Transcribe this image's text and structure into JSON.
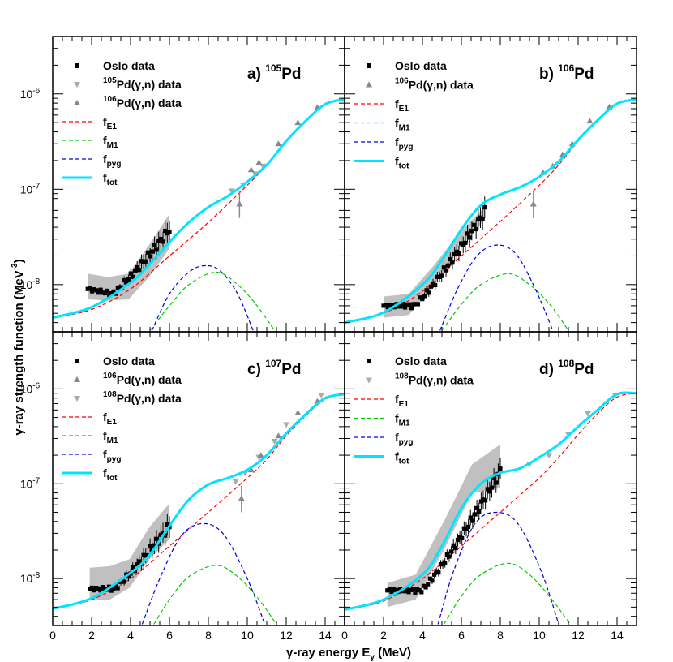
{
  "figure": {
    "ylabel_prefix": "γ-ray strength function (MeV",
    "ylabel_exp": "-3",
    "ylabel_suffix": ")",
    "xlabel": "γ-ray energy E",
    "xlabel_sub": "γ",
    "xlabel_suffix": " (MeV)"
  },
  "chart_data": [
    {
      "type": "scatter",
      "panel": "a)",
      "nucleus_mass": "105",
      "nucleus_symbol": "Pd",
      "xlim": [
        0,
        15
      ],
      "ylim": [
        3.2e-09,
        4e-06
      ],
      "yscale": "log",
      "x_ticks": [
        "0",
        "2",
        "4",
        "6",
        "8",
        "10",
        "12",
        "14"
      ],
      "y_ticks": [
        {
          "value": 1e-08,
          "base": "10",
          "exp": "-8"
        },
        {
          "value": 1e-07,
          "base": "10",
          "exp": "-7"
        },
        {
          "value": 1e-06,
          "base": "10",
          "exp": "-6"
        }
      ],
      "legend": [
        {
          "label": "Oslo data"
        },
        {
          "mass": "105",
          "label": "Pd(γ,n) data"
        },
        {
          "mass": "106",
          "label": "Pd(γ,n) data"
        },
        {
          "label": "f",
          "sub": "E1"
        },
        {
          "label": "f",
          "sub": "M1"
        },
        {
          "label": "f",
          "sub": "pyg"
        },
        {
          "label": "f",
          "sub": "tot"
        }
      ],
      "oslo": {
        "x_range": [
          1.8,
          6.0
        ],
        "y_start": 9e-09,
        "y_min": 8e-09,
        "y_end": 3.8e-08,
        "band_upper": [
          1.3e-08,
          1.2e-08,
          1.3e-08,
          2.6e-08,
          5.5e-08
        ],
        "band_lower": [
          7e-09,
          6.8e-09,
          7e-09,
          1.2e-08,
          2.4e-08
        ]
      },
      "gn_down": [
        {
          "x": 9.2,
          "y": 9.6e-08
        },
        {
          "x": 9.8,
          "y": 1.1e-07
        },
        {
          "x": 10.4,
          "y": 1.45e-07
        },
        {
          "x": 10.8,
          "y": 1.75e-07
        }
      ],
      "gn_up": [
        {
          "x": 9.6,
          "y": 7e-08,
          "err": [
            5e-08,
            9.5e-08
          ]
        },
        {
          "x": 10.2,
          "y": 1.6e-07
        },
        {
          "x": 10.6,
          "y": 1.9e-07
        },
        {
          "x": 11.6,
          "y": 3e-07
        },
        {
          "x": 12.6,
          "y": 5e-07
        },
        {
          "x": 13.6,
          "y": 7.2e-07
        }
      ],
      "models": {
        "e1": [
          [
            0,
            4.5e-09
          ],
          [
            2,
            5.5e-09
          ],
          [
            4,
            9e-09
          ],
          [
            6,
            2e-08
          ],
          [
            8,
            4.5e-08
          ],
          [
            10,
            1.1e-07
          ],
          [
            11,
            1.8e-07
          ],
          [
            12,
            3.2e-07
          ],
          [
            13,
            5.2e-07
          ],
          [
            14,
            7.8e-07
          ],
          [
            15,
            8.8e-07
          ]
        ],
        "m1": [
          [
            5,
            3.3e-09
          ],
          [
            6,
            6e-09
          ],
          [
            7,
            1e-08
          ],
          [
            8.4,
            1.35e-08
          ],
          [
            9.5,
            1e-08
          ],
          [
            10.5,
            6e-09
          ],
          [
            11.4,
            3.3e-09
          ]
        ],
        "pyg": [
          [
            5.1,
            3.3e-09
          ],
          [
            6,
            8e-09
          ],
          [
            7,
            1.35e-08
          ],
          [
            7.8,
            1.58e-08
          ],
          [
            8.6,
            1.4e-08
          ],
          [
            9.5,
            8e-09
          ],
          [
            10.3,
            3.3e-09
          ]
        ],
        "tot": [
          [
            0,
            4.5e-09
          ],
          [
            2,
            5.8e-09
          ],
          [
            4,
            1.05e-08
          ],
          [
            5,
            1.65e-08
          ],
          [
            6,
            2.8e-08
          ],
          [
            7,
            4.5e-08
          ],
          [
            8,
            6.5e-08
          ],
          [
            9,
            8.5e-08
          ],
          [
            10,
            1.2e-07
          ],
          [
            11,
            1.8e-07
          ],
          [
            12,
            3.2e-07
          ],
          [
            13,
            5.2e-07
          ],
          [
            14,
            7.8e-07
          ],
          [
            15,
            8.8e-07
          ]
        ]
      }
    },
    {
      "type": "scatter",
      "panel": "b)",
      "nucleus_mass": "106",
      "nucleus_symbol": "Pd",
      "xlim": [
        0,
        15
      ],
      "ylim": [
        3.2e-09,
        4e-06
      ],
      "yscale": "log",
      "x_ticks": [
        "0",
        "2",
        "4",
        "6",
        "8",
        "10",
        "12",
        "14"
      ],
      "y_ticks": [
        {
          "value": 1e-08,
          "base": "10",
          "exp": "-8"
        },
        {
          "value": 1e-07,
          "base": "10",
          "exp": "-7"
        },
        {
          "value": 1e-06,
          "base": "10",
          "exp": "-6"
        }
      ],
      "legend": [
        {
          "label": "Oslo data"
        },
        {
          "mass": "106",
          "label": "Pd(γ,n) data"
        },
        {
          "label": "f",
          "sub": "E1"
        },
        {
          "label": "f",
          "sub": "M1"
        },
        {
          "label": "f",
          "sub": "pyg"
        },
        {
          "label": "f",
          "sub": "tot"
        }
      ],
      "oslo": {
        "x_range": [
          2.0,
          7.2
        ],
        "y_start": 6e-09,
        "y_min": 6e-09,
        "y_end": 5.8e-08,
        "band_upper": [
          7.5e-09,
          8e-09,
          1.6e-08,
          3.5e-08,
          6.5e-08
        ],
        "band_lower": [
          4.5e-09,
          4.8e-09,
          1e-08,
          2.4e-08,
          4.8e-08
        ]
      },
      "gn_down": [],
      "gn_up": [
        {
          "x": 9.7,
          "y": 7e-08,
          "err": [
            5e-08,
            9.5e-08
          ]
        },
        {
          "x": 10.2,
          "y": 1.5e-07
        },
        {
          "x": 10.7,
          "y": 1.75e-07
        },
        {
          "x": 11.2,
          "y": 2.3e-07
        },
        {
          "x": 11.7,
          "y": 3e-07
        },
        {
          "x": 12.6,
          "y": 5.2e-07
        },
        {
          "x": 13.6,
          "y": 7.3e-07
        }
      ],
      "models": {
        "e1": [
          [
            0,
            4e-09
          ],
          [
            2,
            5e-09
          ],
          [
            4,
            8.5e-09
          ],
          [
            6,
            2e-08
          ],
          [
            8,
            4.6e-08
          ],
          [
            10,
            1.1e-07
          ],
          [
            11,
            1.8e-07
          ],
          [
            12,
            3.2e-07
          ],
          [
            13,
            5.2e-07
          ],
          [
            14,
            7.8e-07
          ],
          [
            15,
            8.8e-07
          ]
        ],
        "m1": [
          [
            5,
            3.3e-09
          ],
          [
            6,
            6.2e-09
          ],
          [
            7,
            1e-08
          ],
          [
            8.4,
            1.3e-08
          ],
          [
            9.5,
            1e-08
          ],
          [
            10.6,
            6e-09
          ],
          [
            11.5,
            3.3e-09
          ]
        ],
        "pyg": [
          [
            4.9,
            3.3e-09
          ],
          [
            5.8,
            9e-09
          ],
          [
            6.8,
            2e-08
          ],
          [
            7.8,
            2.6e-08
          ],
          [
            8.8,
            2.1e-08
          ],
          [
            9.8,
            9e-09
          ],
          [
            10.7,
            3.3e-09
          ]
        ],
        "tot": [
          [
            0,
            4e-09
          ],
          [
            2,
            5.1e-09
          ],
          [
            4,
            1e-08
          ],
          [
            5,
            1.8e-08
          ],
          [
            6,
            3.8e-08
          ],
          [
            7,
            6.8e-08
          ],
          [
            8,
            8.8e-08
          ],
          [
            9,
            1.05e-07
          ],
          [
            10,
            1.35e-07
          ],
          [
            11,
            1.95e-07
          ],
          [
            12,
            3.3e-07
          ],
          [
            13,
            5.3e-07
          ],
          [
            14,
            7.9e-07
          ],
          [
            15,
            8.8e-07
          ]
        ]
      }
    },
    {
      "type": "scatter",
      "panel": "c)",
      "nucleus_mass": "107",
      "nucleus_symbol": "Pd",
      "xlim": [
        0,
        15
      ],
      "ylim": [
        3.2e-09,
        4e-06
      ],
      "yscale": "log",
      "x_ticks": [
        "0",
        "2",
        "4",
        "6",
        "8",
        "10",
        "12",
        "14"
      ],
      "y_ticks": [
        {
          "value": 1e-08,
          "base": "10",
          "exp": "-8"
        },
        {
          "value": 1e-07,
          "base": "10",
          "exp": "-7"
        },
        {
          "value": 1e-06,
          "base": "10",
          "exp": "-6"
        }
      ],
      "legend": [
        {
          "label": "Oslo data"
        },
        {
          "mass": "106",
          "label": "Pd(γ,n) data"
        },
        {
          "mass": "108",
          "label": "Pd(γ,n) data"
        },
        {
          "label": "f",
          "sub": "E1"
        },
        {
          "label": "f",
          "sub": "M1"
        },
        {
          "label": "f",
          "sub": "pyg"
        },
        {
          "label": "f",
          "sub": "tot"
        }
      ],
      "oslo": {
        "x_range": [
          1.9,
          6.0
        ],
        "y_start": 7.8e-09,
        "y_min": 7.8e-09,
        "y_end": 3.6e-08,
        "band_upper": [
          1.3e-08,
          1.35e-08,
          1.6e-08,
          3.5e-08,
          6.2e-08
        ],
        "band_lower": [
          6e-09,
          6e-09,
          8e-09,
          1.6e-08,
          2.6e-08
        ]
      },
      "gn_down": [
        {
          "x": 9.4,
          "y": 1.05e-07
        },
        {
          "x": 9.9,
          "y": 1.3e-07
        },
        {
          "x": 10.6,
          "y": 1.9e-07
        },
        {
          "x": 11.4,
          "y": 2.8e-07
        },
        {
          "x": 12.0,
          "y": 4.2e-07
        },
        {
          "x": 13.8,
          "y": 8.6e-07
        }
      ],
      "gn_up": [
        {
          "x": 9.7,
          "y": 7e-08,
          "err": [
            5e-08,
            9.5e-08
          ]
        },
        {
          "x": 10.2,
          "y": 1.4e-07
        },
        {
          "x": 10.7,
          "y": 2e-07
        },
        {
          "x": 11.6,
          "y": 3.2e-07
        },
        {
          "x": 12.6,
          "y": 5.6e-07
        },
        {
          "x": 13.6,
          "y": 7.4e-07
        }
      ],
      "models": {
        "e1": [
          [
            0,
            4.8e-09
          ],
          [
            2,
            6e-09
          ],
          [
            4,
            1e-08
          ],
          [
            6,
            2.2e-08
          ],
          [
            8,
            5e-08
          ],
          [
            10,
            1.15e-07
          ],
          [
            11,
            1.8e-07
          ],
          [
            12,
            3.2e-07
          ],
          [
            13,
            5.2e-07
          ],
          [
            14,
            7.8e-07
          ],
          [
            15,
            8.8e-07
          ]
        ],
        "m1": [
          [
            5.2,
            3.3e-09
          ],
          [
            6,
            6e-09
          ],
          [
            7,
            1.05e-08
          ],
          [
            8.4,
            1.38e-08
          ],
          [
            9.5,
            1.05e-08
          ],
          [
            10.6,
            6e-09
          ],
          [
            11.5,
            3.3e-09
          ]
        ],
        "pyg": [
          [
            4.6,
            3.3e-09
          ],
          [
            5.5,
            1e-08
          ],
          [
            6.6,
            2.8e-08
          ],
          [
            7.7,
            3.8e-08
          ],
          [
            8.8,
            2.9e-08
          ],
          [
            10,
            1e-08
          ],
          [
            10.9,
            3.3e-09
          ]
        ],
        "tot": [
          [
            0,
            4.8e-09
          ],
          [
            2,
            6.2e-09
          ],
          [
            4,
            1.15e-08
          ],
          [
            5,
            1.8e-08
          ],
          [
            6,
            3.6e-08
          ],
          [
            7,
            6.8e-08
          ],
          [
            8,
            9.8e-08
          ],
          [
            9,
            1.15e-07
          ],
          [
            10,
            1.4e-07
          ],
          [
            11,
            2e-07
          ],
          [
            12,
            3.4e-07
          ],
          [
            13,
            5.4e-07
          ],
          [
            14,
            8e-07
          ],
          [
            15,
            8.8e-07
          ]
        ]
      }
    },
    {
      "type": "scatter",
      "panel": "d)",
      "nucleus_mass": "108",
      "nucleus_symbol": "Pd",
      "xlim": [
        0,
        15
      ],
      "ylim": [
        3.2e-09,
        4e-06
      ],
      "yscale": "log",
      "x_ticks": [
        "0",
        "2",
        "4",
        "6",
        "8",
        "10",
        "12",
        "14"
      ],
      "y_ticks": [
        {
          "value": 1e-08,
          "base": "10",
          "exp": "-8"
        },
        {
          "value": 1e-07,
          "base": "10",
          "exp": "-7"
        },
        {
          "value": 1e-06,
          "base": "10",
          "exp": "-6"
        }
      ],
      "legend": [
        {
          "label": "Oslo data"
        },
        {
          "mass": "108",
          "label": "Pd(γ,n) data"
        },
        {
          "label": "f",
          "sub": "E1"
        },
        {
          "label": "f",
          "sub": "M1"
        },
        {
          "label": "f",
          "sub": "pyg"
        },
        {
          "label": "f",
          "sub": "tot"
        }
      ],
      "oslo": {
        "x_range": [
          2.2,
          8.0
        ],
        "y_start": 7.5e-09,
        "y_min": 7.5e-09,
        "y_end": 1.35e-07,
        "band_upper": [
          9e-09,
          1.1e-08,
          4e-08,
          1.6e-07,
          2.6e-07
        ],
        "band_lower": [
          5e-09,
          6e-09,
          2e-08,
          8e-08,
          9e-08
        ]
      },
      "gn_down": [
        {
          "x": 9.5,
          "y": 1.6e-07
        },
        {
          "x": 10.5,
          "y": 2e-07
        },
        {
          "x": 11.5,
          "y": 3.3e-07
        },
        {
          "x": 12.5,
          "y": 5.5e-07
        },
        {
          "x": 13.9,
          "y": 8.6e-07
        }
      ],
      "gn_up": [],
      "models": {
        "e1": [
          [
            0,
            4.7e-09
          ],
          [
            2,
            5.8e-09
          ],
          [
            4,
            1e-08
          ],
          [
            6,
            2.2e-08
          ],
          [
            8,
            5e-08
          ],
          [
            10,
            1.15e-07
          ],
          [
            11,
            1.9e-07
          ],
          [
            12,
            3.3e-07
          ],
          [
            13,
            5.5e-07
          ],
          [
            14,
            8.2e-07
          ],
          [
            15,
            9e-07
          ]
        ],
        "m1": [
          [
            5.1,
            3.3e-09
          ],
          [
            6,
            6.5e-09
          ],
          [
            7,
            1.1e-08
          ],
          [
            8.4,
            1.45e-08
          ],
          [
            9.5,
            1.1e-08
          ],
          [
            10.6,
            6.2e-09
          ],
          [
            11.6,
            3.3e-09
          ]
        ],
        "pyg": [
          [
            4.8,
            3.3e-09
          ],
          [
            5.6,
            1.2e-08
          ],
          [
            6.7,
            3.8e-08
          ],
          [
            7.8,
            5e-08
          ],
          [
            8.9,
            3.8e-08
          ],
          [
            10.1,
            1.2e-08
          ],
          [
            11,
            3.3e-09
          ]
        ],
        "tot": [
          [
            0,
            4.7e-09
          ],
          [
            2,
            6e-09
          ],
          [
            4,
            1.1e-08
          ],
          [
            5,
            2.2e-08
          ],
          [
            6,
            5.5e-08
          ],
          [
            7,
            1e-07
          ],
          [
            8,
            1.3e-07
          ],
          [
            9,
            1.45e-07
          ],
          [
            10,
            1.9e-07
          ],
          [
            11,
            2.6e-07
          ],
          [
            12,
            4e-07
          ],
          [
            13,
            6e-07
          ],
          [
            14,
            8.8e-07
          ],
          [
            15,
            9e-07
          ]
        ]
      }
    }
  ]
}
